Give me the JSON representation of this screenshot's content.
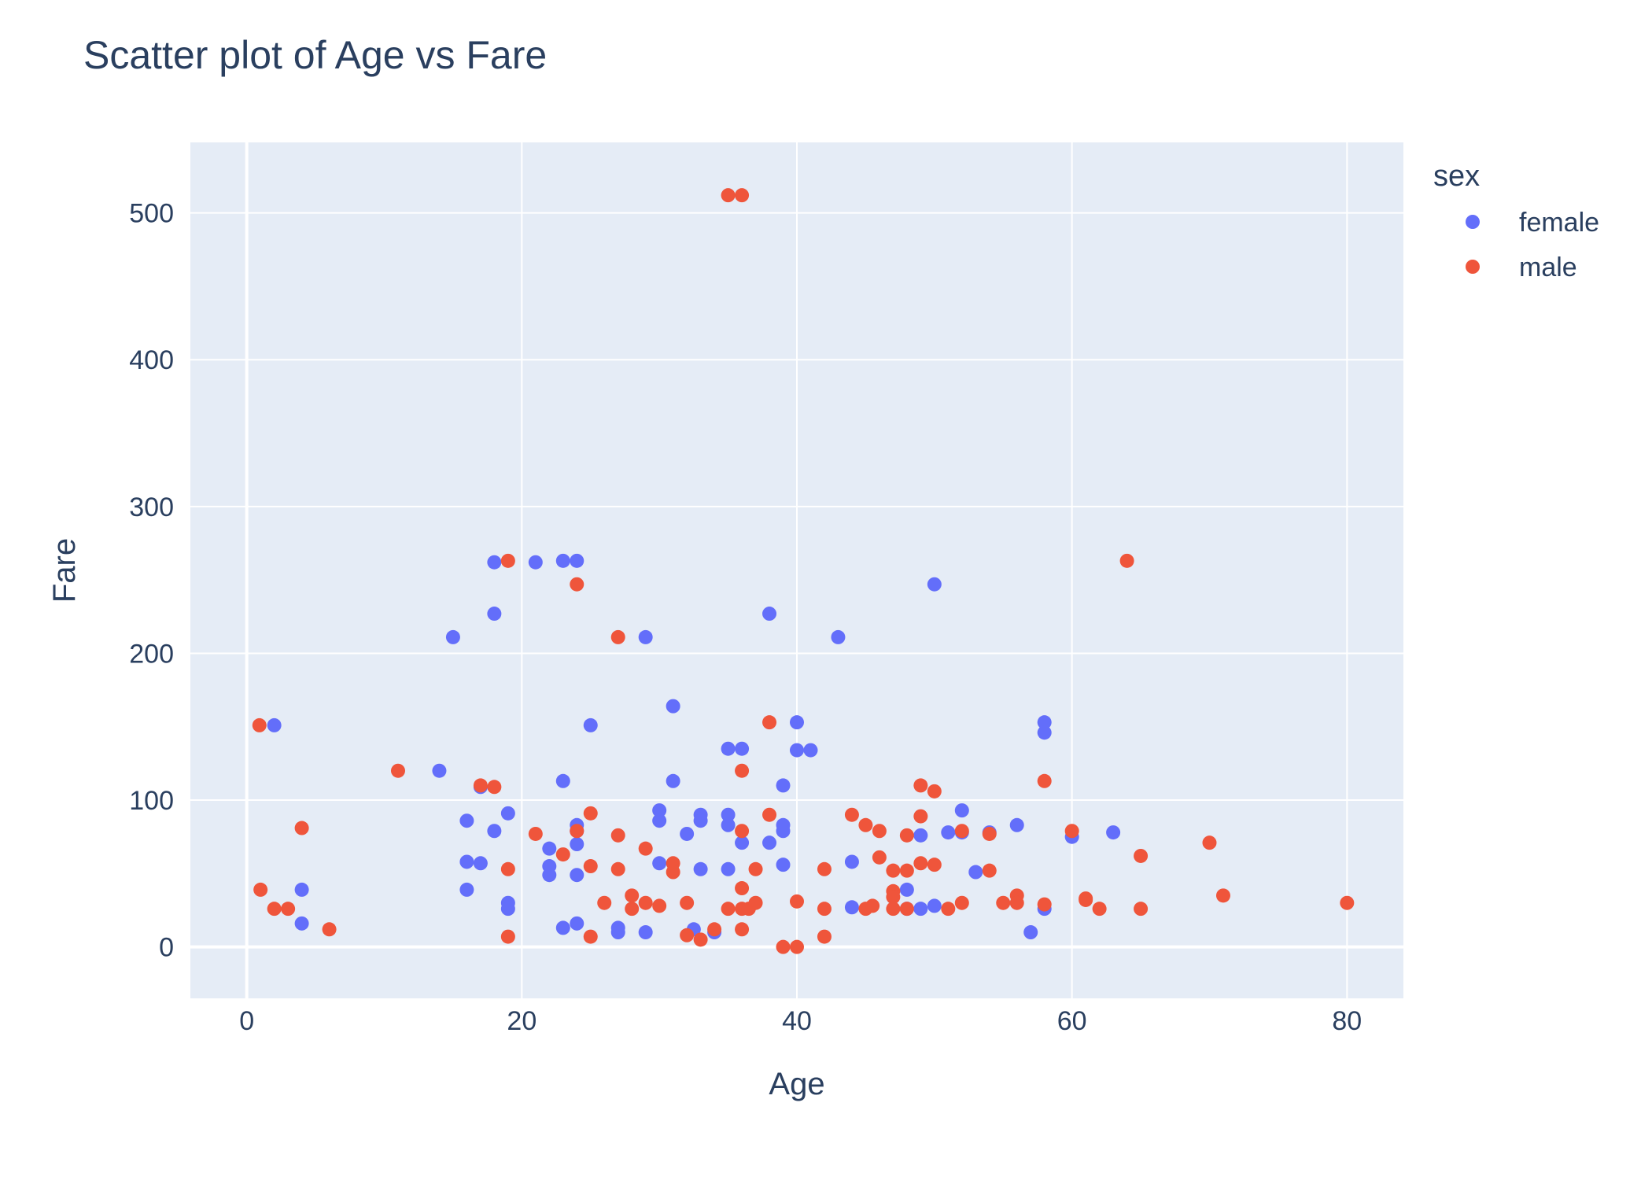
{
  "chart_data": {
    "type": "scatter",
    "title": "Scatter plot of Age vs Fare",
    "xlabel": "Age",
    "ylabel": "Fare",
    "xlim": [
      -4.1,
      84.1
    ],
    "ylim": [
      -35,
      548
    ],
    "xticks": [
      0,
      20,
      40,
      60,
      80
    ],
    "yticks": [
      0,
      100,
      200,
      300,
      400,
      500
    ],
    "grid": true,
    "legend": {
      "title": "sex",
      "position": "top-right"
    },
    "colors": {
      "plot_bg": "#E5ECF6",
      "grid": "#ffffff",
      "text": "#2a3f5f"
    },
    "series": [
      {
        "name": "female",
        "color": "#636EFA",
        "x": [
          2,
          4,
          4,
          14,
          15,
          16,
          16,
          16,
          17,
          17,
          18,
          18,
          18,
          19,
          19,
          19,
          21,
          22,
          22,
          22,
          23,
          23,
          23,
          24,
          24,
          24,
          24,
          24,
          24,
          25,
          27,
          27,
          29,
          29,
          30,
          30,
          30,
          31,
          31,
          32,
          32.5,
          33,
          33,
          33,
          34,
          35,
          35,
          35,
          35,
          36,
          36,
          38,
          38,
          39,
          39,
          39,
          39,
          40,
          40,
          41,
          43,
          44,
          44,
          48,
          48,
          49,
          49,
          50,
          50,
          51,
          52,
          52,
          53,
          54,
          56,
          57,
          58,
          58,
          58,
          60,
          63
        ],
        "y": [
          151,
          39,
          16,
          120,
          211,
          86,
          58,
          39,
          57,
          109,
          262,
          227,
          79,
          91,
          30,
          26,
          262,
          67,
          55,
          49,
          263,
          113,
          13,
          263,
          83,
          79,
          70,
          49,
          16,
          151,
          13,
          10,
          211,
          10,
          93,
          86,
          57,
          164,
          113,
          77,
          12,
          90,
          86,
          53,
          10,
          135,
          90,
          83,
          53,
          135,
          71,
          227,
          71,
          110,
          83,
          79,
          56,
          153,
          134,
          134,
          211,
          58,
          27,
          39,
          26,
          76,
          26,
          247,
          28,
          78,
          93,
          78,
          51,
          78,
          83,
          10,
          153,
          146,
          26,
          75,
          78
        ]
      },
      {
        "name": "male",
        "color": "#EF553B",
        "x": [
          0.92,
          1,
          2,
          3,
          4,
          6,
          11,
          17,
          18,
          19,
          19,
          19,
          21,
          23,
          24,
          24,
          25,
          25,
          25,
          26,
          27,
          27,
          27,
          28,
          28,
          29,
          29,
          30,
          31,
          31,
          32,
          32,
          33,
          34,
          35,
          35,
          36,
          36,
          36,
          36,
          36,
          36,
          36.5,
          37,
          37,
          38,
          38,
          39,
          40,
          40,
          42,
          42,
          42,
          44,
          45,
          45,
          45.5,
          46,
          46,
          47,
          47,
          47,
          47,
          48,
          48,
          48,
          49,
          49,
          49,
          50,
          50,
          51,
          52,
          52,
          54,
          54,
          55,
          56,
          56,
          58,
          58,
          60,
          61,
          61,
          62,
          64,
          65,
          65,
          70,
          71,
          80
        ],
        "y": [
          151,
          39,
          26,
          26,
          81,
          12,
          120,
          110,
          109,
          263,
          53,
          7,
          77,
          63,
          247,
          79,
          91,
          55,
          7,
          30,
          211,
          76,
          53,
          35,
          26,
          67,
          30,
          28,
          57,
          51,
          30,
          8,
          5,
          12,
          512,
          26,
          512,
          120,
          79,
          40,
          26,
          12,
          26,
          53,
          30,
          153,
          90,
          0,
          31,
          0,
          53,
          26,
          7,
          90,
          83,
          26,
          28,
          79,
          61,
          52,
          38,
          34,
          26,
          76,
          52,
          26,
          110,
          89,
          57,
          106,
          56,
          26,
          79,
          30,
          77,
          52,
          30,
          35,
          30,
          113,
          29,
          79,
          33,
          32,
          26,
          263,
          62,
          26,
          71,
          35,
          30
        ]
      }
    ]
  }
}
